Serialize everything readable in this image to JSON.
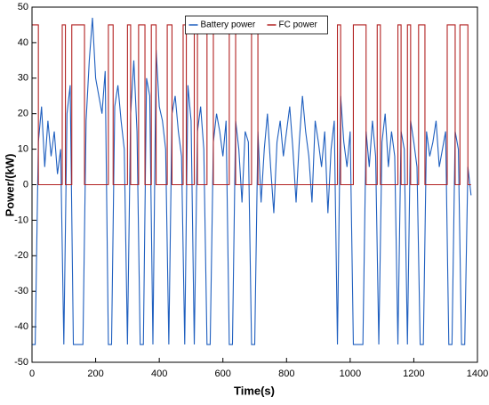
{
  "chart_data": {
    "type": "line",
    "xlabel": "Time(s)",
    "ylabel": "Power/(kW)",
    "xlim": [
      0,
      1400
    ],
    "xticks": [
      0,
      200,
      400,
      600,
      800,
      1000,
      1200,
      1400
    ],
    "ylim": [
      -50,
      50
    ],
    "yticks": [
      -50,
      -40,
      -30,
      -20,
      -10,
      0,
      10,
      20,
      30,
      40,
      50
    ],
    "grid": false,
    "legend": "top",
    "series": [
      {
        "name": "Battery power",
        "color": "#1f5fbf",
        "x": [
          0,
          10,
          20,
          30,
          40,
          50,
          60,
          70,
          80,
          90,
          100,
          110,
          120,
          130,
          140,
          150,
          160,
          170,
          180,
          190,
          200,
          210,
          220,
          230,
          240,
          250,
          260,
          270,
          280,
          290,
          300,
          310,
          320,
          330,
          340,
          350,
          360,
          370,
          380,
          390,
          400,
          410,
          420,
          430,
          440,
          450,
          460,
          470,
          480,
          490,
          500,
          510,
          520,
          530,
          540,
          550,
          560,
          570,
          580,
          590,
          600,
          610,
          620,
          630,
          640,
          650,
          660,
          670,
          680,
          690,
          700,
          710,
          720,
          730,
          740,
          750,
          760,
          770,
          780,
          790,
          800,
          810,
          820,
          830,
          840,
          850,
          860,
          870,
          880,
          890,
          900,
          910,
          920,
          930,
          940,
          950,
          960,
          970,
          980,
          990,
          1000,
          1010,
          1020,
          1030,
          1040,
          1050,
          1060,
          1070,
          1080,
          1090,
          1100,
          1110,
          1120,
          1130,
          1140,
          1150,
          1160,
          1170,
          1180,
          1190,
          1200,
          1210,
          1220,
          1230,
          1240,
          1250,
          1260,
          1270,
          1280,
          1290,
          1300,
          1310,
          1320,
          1330,
          1340,
          1350,
          1360,
          1370,
          1380
        ],
        "values": [
          -45,
          -45,
          12,
          22,
          5,
          18,
          8,
          15,
          3,
          10,
          -45,
          20,
          28,
          -45,
          -45,
          -45,
          -45,
          18,
          35,
          47,
          30,
          25,
          20,
          32,
          -45,
          -45,
          22,
          28,
          18,
          10,
          -45,
          20,
          35,
          15,
          -45,
          -45,
          30,
          25,
          -45,
          38,
          22,
          18,
          10,
          -45,
          20,
          25,
          15,
          8,
          -45,
          28,
          18,
          -45,
          15,
          22,
          10,
          -45,
          -45,
          12,
          20,
          15,
          8,
          18,
          -45,
          -45,
          18,
          10,
          -5,
          15,
          12,
          -45,
          -45,
          15,
          -5,
          10,
          20,
          5,
          -8,
          12,
          18,
          8,
          15,
          22,
          10,
          -5,
          12,
          25,
          15,
          8,
          -5,
          18,
          12,
          5,
          15,
          -8,
          10,
          18,
          -45,
          25,
          12,
          5,
          15,
          -45,
          -45,
          -45,
          -45,
          15,
          5,
          18,
          8,
          -45,
          12,
          20,
          5,
          15,
          8,
          -45,
          15,
          10,
          -45,
          18,
          12,
          5,
          -45,
          -45,
          15,
          8,
          12,
          18,
          5,
          10,
          15,
          -45,
          -45,
          15,
          10,
          -45,
          -45,
          5,
          -3
        ]
      },
      {
        "name": "FC power",
        "color": "#b22222",
        "x": [
          0,
          20,
          20,
          95,
          95,
          105,
          105,
          125,
          125,
          165,
          165,
          240,
          240,
          255,
          255,
          300,
          300,
          310,
          310,
          335,
          335,
          355,
          355,
          375,
          375,
          390,
          390,
          425,
          425,
          440,
          440,
          475,
          475,
          485,
          485,
          510,
          510,
          520,
          520,
          550,
          550,
          570,
          570,
          620,
          620,
          640,
          640,
          690,
          690,
          710,
          710,
          960,
          960,
          970,
          970,
          1010,
          1010,
          1050,
          1050,
          1085,
          1085,
          1095,
          1095,
          1150,
          1150,
          1160,
          1160,
          1180,
          1180,
          1190,
          1190,
          1215,
          1215,
          1235,
          1235,
          1305,
          1305,
          1330,
          1330,
          1345,
          1345,
          1370,
          1370,
          1380
        ],
        "values": [
          45,
          45,
          0,
          0,
          45,
          45,
          0,
          0,
          45,
          45,
          0,
          0,
          45,
          45,
          0,
          0,
          45,
          45,
          0,
          0,
          45,
          45,
          0,
          0,
          45,
          45,
          0,
          0,
          45,
          45,
          0,
          0,
          45,
          45,
          0,
          0,
          45,
          45,
          0,
          0,
          45,
          45,
          0,
          0,
          45,
          45,
          0,
          0,
          45,
          45,
          0,
          0,
          45,
          45,
          0,
          0,
          45,
          45,
          0,
          0,
          45,
          45,
          0,
          0,
          45,
          45,
          0,
          0,
          45,
          45,
          0,
          0,
          45,
          45,
          0,
          0,
          45,
          45,
          0,
          0,
          45,
          45,
          0,
          0
        ]
      }
    ]
  }
}
